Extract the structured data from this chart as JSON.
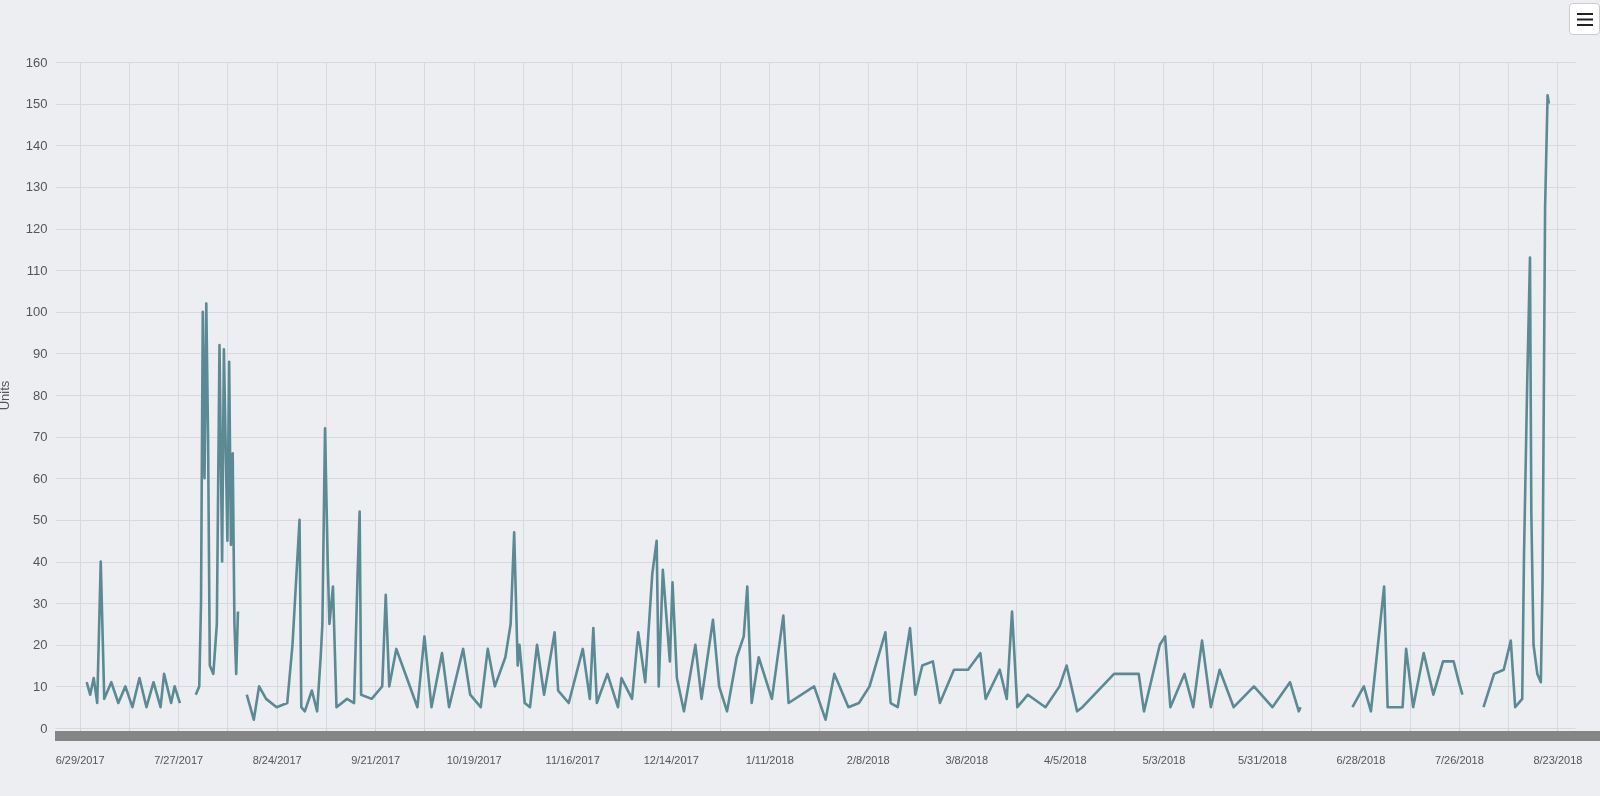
{
  "chart_data": {
    "type": "line",
    "ylabel": "Units",
    "x": [
      "2017-07-01",
      "2017-07-02",
      "2017-07-03",
      "2017-07-04",
      "2017-07-05",
      "2017-07-06",
      "2017-07-08",
      "2017-07-10",
      "2017-07-12",
      "2017-07-14",
      "2017-07-16",
      "2017-07-18",
      "2017-07-20",
      "2017-07-22",
      "2017-07-23",
      "2017-07-25",
      "2017-07-26",
      "2017-07-27T12:00",
      "2017-07-29",
      "2017-08-01",
      "2017-08-02",
      "2017-08-02T12:00",
      "2017-08-03",
      "2017-08-03T12:00",
      "2017-08-04",
      "2017-08-04T12:00",
      "2017-08-05",
      "2017-08-06",
      "2017-08-07",
      "2017-08-07T18:00",
      "2017-08-08T12:00",
      "2017-08-09",
      "2017-08-10",
      "2017-08-10T12:00",
      "2017-08-11",
      "2017-08-11T12:00",
      "2017-08-12",
      "2017-08-12T12:00",
      "2017-08-13",
      "2017-08-14",
      "2017-08-15T12:00",
      "2017-08-17T12:00",
      "2017-08-19",
      "2017-08-21",
      "2017-08-24",
      "2017-08-27",
      "2017-08-28T12:00",
      "2017-08-30T12:00",
      "2017-08-31",
      "2017-09-01",
      "2017-09-03",
      "2017-09-04T12:00",
      "2017-09-05T12:00",
      "2017-09-06",
      "2017-09-06T12:00",
      "2017-09-06T18:00",
      "2017-09-07T12:00",
      "2017-09-08",
      "2017-09-09",
      "2017-09-10",
      "2017-09-13",
      "2017-09-15",
      "2017-09-16",
      "2017-09-16T14:00",
      "2017-09-17",
      "2017-09-20",
      "2017-09-23",
      "2017-09-24",
      "2017-09-25",
      "2017-09-27",
      "2017-09-30",
      "2017-10-03",
      "2017-10-05",
      "2017-10-07",
      "2017-10-10",
      "2017-10-12",
      "2017-10-16",
      "2017-10-18",
      "2017-10-21",
      "2017-10-23",
      "2017-10-25",
      "2017-10-28",
      "2017-10-29T12:00",
      "2017-10-30T12:00",
      "2017-10-31T12:00",
      "2017-11-01",
      "2017-11-02T12:00",
      "2017-11-04",
      "2017-11-06",
      "2017-11-08",
      "2017-11-11",
      "2017-11-12",
      "2017-11-15",
      "2017-11-19",
      "2017-11-21",
      "2017-11-22",
      "2017-11-23",
      "2017-11-26",
      "2017-11-29",
      "2017-11-30",
      "2017-12-03",
      "2017-12-04T18:00",
      "2017-12-06T18:00",
      "2017-12-08T18:00",
      "2017-12-10",
      "2017-12-10T14:00",
      "2017-12-11T18:00",
      "2017-12-13T18:00",
      "2017-12-14T12:00",
      "2017-12-15T18:00",
      "2017-12-17T18:00",
      "2017-12-21",
      "2017-12-22T18:00",
      "2017-12-26",
      "2017-12-27T18:00",
      "2017-12-30",
      "2018-01-01T18:00",
      "2018-01-03T18:00",
      "2018-01-04T18:00",
      "2018-01-06",
      "2018-01-08",
      "2018-01-11T18:00",
      "2018-01-15",
      "2018-01-16T12:00",
      "2018-01-23T18:00",
      "2018-01-27",
      "2018-01-29T12:00",
      "2018-02-02T12:00",
      "2018-02-05T12:00",
      "2018-02-08T12:00",
      "2018-02-13",
      "2018-02-14T12:00",
      "2018-02-16T12:00",
      "2018-02-20",
      "2018-02-21T12:00",
      "2018-02-23T12:00",
      "2018-02-26T12:00",
      "2018-02-28T12:00",
      "2018-03-04T12:00",
      "2018-03-08T12:00",
      "2018-03-12",
      "2018-03-13T12:00",
      "2018-03-17T12:00",
      "2018-03-19T12:00",
      "2018-03-21",
      "2018-03-22T12:00",
      "2018-03-25T12:00",
      "2018-03-30T12:00",
      "2018-04-03T12:00",
      "2018-04-05T12:00",
      "2018-04-08T12:00",
      "2018-04-10",
      "2018-04-19",
      "2018-04-26",
      "2018-04-27T12:00",
      "2018-05-02",
      "2018-05-03T12:00",
      "2018-05-05",
      "2018-05-09",
      "2018-05-11T12:00",
      "2018-05-14",
      "2018-05-16T12:00",
      "2018-05-19",
      "2018-05-23",
      "2018-05-28T18:00",
      "2018-06-03",
      "2018-06-08",
      "2018-06-10T12:00",
      "2018-06-11",
      "2018-06-18",
      "2018-06-25T18:00",
      "2018-06-29",
      "2018-07-01",
      "2018-07-04T18:00",
      "2018-07-05T18:00",
      "2018-07-10",
      "2018-07-11",
      "2018-07-13",
      "2018-07-16",
      "2018-07-18T18:00",
      "2018-07-21T12:00",
      "2018-07-24T12:00",
      "2018-07-26",
      "2018-07-27",
      "2018-07-30",
      "2018-08-02",
      "2018-08-05",
      "2018-08-07T18:00",
      "2018-08-09T18:00",
      "2018-08-11",
      "2018-08-13",
      "2018-08-13T12:00",
      "2018-08-14T10:00",
      "2018-08-15T05:00",
      "2018-08-15T14:00",
      "2018-08-16T05:00",
      "2018-08-17T07:00",
      "2018-08-18T07:00",
      "2018-08-18T19:00",
      "2018-08-19T12:00",
      "2018-08-20T05:00",
      "2018-08-20T14:00"
    ],
    "series": [
      {
        "color": "#5b8a94",
        "values": [
          11,
          8,
          12,
          6,
          40,
          7,
          11,
          6,
          10,
          5,
          12,
          5,
          11,
          5,
          13,
          6,
          10,
          6,
          null,
          8,
          10,
          30,
          100,
          60,
          102,
          70,
          15,
          13,
          25,
          92,
          40,
          91,
          45,
          88,
          44,
          66,
          25,
          13,
          28,
          null,
          8,
          2,
          10,
          7,
          5,
          6,
          20,
          50,
          5,
          4,
          9,
          4,
          17,
          25,
          57,
          72,
          40,
          25,
          34,
          5,
          7,
          6,
          37,
          52,
          8,
          7,
          10,
          32,
          10,
          19,
          12,
          5,
          22,
          5,
          18,
          5,
          19,
          8,
          5,
          19,
          10,
          17,
          25,
          47,
          15,
          20,
          6,
          5,
          20,
          8,
          23,
          9,
          6,
          19,
          7,
          24,
          6,
          13,
          5,
          12,
          7,
          23,
          11,
          37,
          45,
          10,
          38,
          16,
          35,
          12,
          4,
          20,
          7,
          26,
          10,
          4,
          17,
          22,
          34,
          6,
          17,
          7,
          27,
          6,
          10,
          2,
          13,
          5,
          6,
          10,
          23,
          6,
          5,
          24,
          8,
          15,
          16,
          6,
          14,
          14,
          18,
          7,
          14,
          7,
          28,
          5,
          8,
          5,
          10,
          15,
          4,
          5,
          13,
          13,
          4,
          20,
          22,
          5,
          13,
          5,
          21,
          5,
          14,
          5,
          10,
          5,
          11,
          4,
          5,
          null,
          5,
          10,
          4,
          34,
          5,
          5,
          19,
          5,
          18,
          8,
          16,
          16,
          11,
          8,
          null,
          5,
          13,
          14,
          21,
          5,
          7,
          41,
          83,
          113,
          52,
          20,
          13,
          11,
          36,
          125,
          152,
          150
        ]
      }
    ],
    "xlim": [
      "2017-06-22",
      "2018-08-28"
    ],
    "xticks": [
      {
        "value": "2017-06-29",
        "label": "6/29/2017"
      },
      {
        "value": "2017-07-13",
        "label": null
      },
      {
        "value": "2017-07-27",
        "label": "7/27/2017"
      },
      {
        "value": "2017-08-10",
        "label": null
      },
      {
        "value": "2017-08-24",
        "label": "8/24/2017"
      },
      {
        "value": "2017-09-07",
        "label": null
      },
      {
        "value": "2017-09-21",
        "label": "9/21/2017"
      },
      {
        "value": "2017-10-05",
        "label": null
      },
      {
        "value": "2017-10-19",
        "label": "10/19/2017"
      },
      {
        "value": "2017-11-02",
        "label": null
      },
      {
        "value": "2017-11-16",
        "label": "11/16/2017"
      },
      {
        "value": "2017-11-30",
        "label": null
      },
      {
        "value": "2017-12-14",
        "label": "12/14/2017"
      },
      {
        "value": "2017-12-28",
        "label": null
      },
      {
        "value": "2018-01-11",
        "label": "1/11/2018"
      },
      {
        "value": "2018-01-25",
        "label": null
      },
      {
        "value": "2018-02-08",
        "label": "2/8/2018"
      },
      {
        "value": "2018-02-22",
        "label": null
      },
      {
        "value": "2018-03-08",
        "label": "3/8/2018"
      },
      {
        "value": "2018-03-22",
        "label": null
      },
      {
        "value": "2018-04-05",
        "label": "4/5/2018"
      },
      {
        "value": "2018-04-19",
        "label": null
      },
      {
        "value": "2018-05-03",
        "label": "5/3/2018"
      },
      {
        "value": "2018-05-17",
        "label": null
      },
      {
        "value": "2018-05-31",
        "label": "5/31/2018"
      },
      {
        "value": "2018-06-14",
        "label": null
      },
      {
        "value": "2018-06-28",
        "label": "6/28/2018"
      },
      {
        "value": "2018-07-12",
        "label": null
      },
      {
        "value": "2018-07-26",
        "label": "7/26/2018"
      },
      {
        "value": "2018-08-09",
        "label": null
      },
      {
        "value": "2018-08-23",
        "label": "8/23/2018"
      }
    ],
    "ylim": [
      0,
      160
    ],
    "yticks": [
      0,
      10,
      20,
      30,
      40,
      50,
      60,
      70,
      80,
      90,
      100,
      110,
      120,
      130,
      140,
      150,
      160
    ],
    "grid": true
  }
}
